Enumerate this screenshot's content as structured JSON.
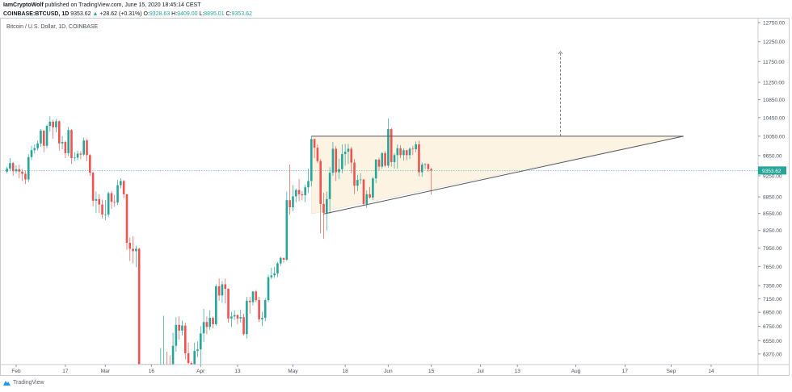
{
  "header": {
    "author": "IamCryptoWolf",
    "published": "published on TradingView.com, June 15, 2020 18:45:14 CEST",
    "symbol": "COINBASE:BTCUSD, 1D",
    "last": "9353.62",
    "change": "+28.62 (+0.31%)",
    "o_label": "O:",
    "o": "9328.63",
    "h_label": "H:",
    "h": "9409.00",
    "l_label": "L:",
    "l": "8895.01",
    "c_label": "C:",
    "c": "9353.62"
  },
  "chart_title": "Bitcoin / U.S. Dollar, 1D, COINBASE",
  "footer": {
    "brand": "TradingView"
  },
  "colors": {
    "up": "#26a69a",
    "down": "#ef5350",
    "pattern_fill": "#fdf3e3",
    "price_line": "#26a69a"
  },
  "chart_data": {
    "type": "candlestick",
    "scale": "log",
    "ylim": [
      6370,
      12750
    ],
    "yticks": [
      "12750.00",
      "12250.00",
      "11750.00",
      "11250.00",
      "10850.00",
      "10450.00",
      "10050.00",
      "9650.00",
      "9250.00",
      "8850.00",
      "8550.00",
      "8250.00",
      "7950.00",
      "7650.00",
      "7350.00",
      "7150.00",
      "6950.00",
      "6750.00",
      "6550.00",
      "6370.00"
    ],
    "xticks": [
      [
        "Feb",
        "2020-02-01"
      ],
      [
        "17",
        "2020-02-17"
      ],
      [
        "Mar",
        "2020-03-01"
      ],
      [
        "16",
        "2020-03-16"
      ],
      [
        "Apr",
        "2020-04-01"
      ],
      [
        "13",
        "2020-04-13"
      ],
      [
        "May",
        "2020-05-01"
      ],
      [
        "18",
        "2020-05-18"
      ],
      [
        "Jun",
        "2020-06-01"
      ],
      [
        "15",
        "2020-06-15"
      ],
      [
        "Jul",
        "2020-07-01"
      ],
      [
        "13",
        "2020-07-13"
      ],
      [
        "Aug",
        "2020-08-01"
      ],
      [
        "17",
        "2020-08-17"
      ],
      [
        "Sep",
        "2020-09-01"
      ],
      [
        "14",
        "2020-09-14"
      ]
    ],
    "last_price": "9353.62",
    "drawings": {
      "resistance": 10050,
      "triangle_start": [
        "2020-05-07",
        10050,
        8540
      ],
      "support": [
        [
          "2020-05-11",
          8540
        ],
        [
          "2020-09-05",
          10050
        ]
      ],
      "target_arrow": [
        "2020-07-27",
        10050,
        12000
      ]
    },
    "closes": {
      "start": "2020-01-29",
      "o0": 9330,
      "values": [
        9390,
        9500,
        9340,
        9380,
        9330,
        9290,
        9180,
        9620,
        9760,
        9800,
        9900,
        10170,
        9850,
        10270,
        10360,
        10240,
        10370,
        9900,
        9930,
        9700,
        10180,
        9600,
        9610,
        9690,
        9670,
        9960,
        9660,
        9310,
        8780,
        8810,
        8710,
        8530,
        8530,
        8920,
        8760,
        8750,
        9070,
        9150,
        8900,
        8040,
        7940,
        7900,
        7940,
        4830,
        5620,
        5170,
        5350,
        5010,
        5330,
        5420,
        6190,
        6200,
        6190,
        5830,
        6480,
        6770,
        6690,
        6760,
        6380,
        6250,
        5880,
        6410,
        6430,
        6650,
        6810,
        6740,
        6870,
        6780,
        7340,
        7200,
        7370,
        7300,
        6860,
        6890,
        6910,
        6860,
        6880,
        6640,
        7120,
        7100,
        7260,
        7130,
        6850,
        6870,
        7130,
        7480,
        7510,
        7540,
        7700,
        7790,
        7760,
        8790,
        8660,
        8860,
        8980,
        8900,
        8880,
        9030,
        9150,
        9990,
        9810,
        9540,
        8720,
        8560,
        8810,
        9310,
        9790,
        9320,
        9380,
        9680,
        9730,
        9790,
        9510,
        9060,
        9170,
        9180,
        8720,
        8900,
        8840,
        9200,
        9570,
        9430,
        9700,
        9450,
        10200,
        9520,
        9660,
        9800,
        9660,
        9760,
        9660,
        9790,
        9780,
        9880,
        9320,
        9470,
        9480,
        9380,
        9353.62
      ],
      "highs": [
        9430,
        9600,
        9520,
        9460,
        9470,
        9380,
        9350,
        9680,
        9850,
        9880,
        9960,
        10200,
        10170,
        10300,
        10480,
        10400,
        10420,
        10390,
        10050,
        9960,
        10250,
        10200,
        9720,
        9750,
        9740,
        10020,
        9990,
        9680,
        9330,
        8950,
        8900,
        8800,
        8790,
        8950,
        8960,
        8890,
        9170,
        9200,
        9170,
        8900,
        8130,
        8150,
        7990,
        7960,
        5950,
        5800,
        5400,
        5380,
        5400,
        5540,
        6450,
        6900,
        6400,
        6350,
        6660,
        6880,
        6890,
        6830,
        6800,
        6520,
        6270,
        6520,
        6540,
        6750,
        7000,
        6890,
        6980,
        6890,
        7370,
        7460,
        7420,
        7460,
        7310,
        6960,
        6980,
        6920,
        6990,
        6930,
        7180,
        7180,
        7270,
        7280,
        7180,
        6960,
        7160,
        7520,
        7630,
        7640,
        7720,
        7810,
        7790,
        8950,
        9470,
        9070,
        9010,
        9190,
        8960,
        9080,
        9390,
        10050,
        10000,
        9880,
        9580,
        8930,
        8950,
        9420,
        9930,
        9840,
        9590,
        9880,
        9890,
        9890,
        9830,
        9580,
        9270,
        9300,
        9190,
        8970,
        9040,
        9230,
        9580,
        9610,
        9720,
        9740,
        10430,
        10230,
        9700,
        9880,
        9860,
        9800,
        9740,
        9820,
        9850,
        9940,
        9960,
        9510,
        9500,
        9490,
        9409
      ],
      "lows": [
        9300,
        9340,
        9250,
        9290,
        9200,
        9150,
        9090,
        9130,
        9560,
        9690,
        9750,
        9830,
        9720,
        9800,
        10150,
        10000,
        10130,
        9750,
        9780,
        9600,
        9640,
        9480,
        9540,
        9560,
        9580,
        9640,
        9540,
        9250,
        8680,
        8560,
        8560,
        8460,
        8430,
        8480,
        8630,
        8670,
        8700,
        9010,
        8830,
        7920,
        7740,
        7700,
        7640,
        4400,
        3850,
        5040,
        4980,
        4920,
        5020,
        5220,
        5260,
        5970,
        5850,
        5770,
        5790,
        6400,
        6560,
        6620,
        6300,
        6150,
        5860,
        5880,
        6330,
        6150,
        6530,
        6640,
        6700,
        6720,
        6760,
        7120,
        7090,
        7080,
        6800,
        6740,
        6840,
        6780,
        6800,
        6620,
        6580,
        6930,
        7050,
        7100,
        6810,
        6750,
        6820,
        7100,
        7450,
        7470,
        7480,
        7660,
        7710,
        7740,
        8530,
        8590,
        8750,
        8770,
        8790,
        8750,
        8920,
        9050,
        9600,
        9500,
        8200,
        8110,
        8250,
        8550,
        9250,
        9150,
        9190,
        9300,
        9450,
        9480,
        9300,
        8900,
        8960,
        9090,
        8700,
        8650,
        8820,
        8790,
        9110,
        9350,
        9390,
        9420,
        9410,
        9430,
        9390,
        9390,
        9600,
        9550,
        9560,
        9580,
        9660,
        9720,
        9240,
        9230,
        9380,
        9330,
        8895.01
      ]
    }
  }
}
